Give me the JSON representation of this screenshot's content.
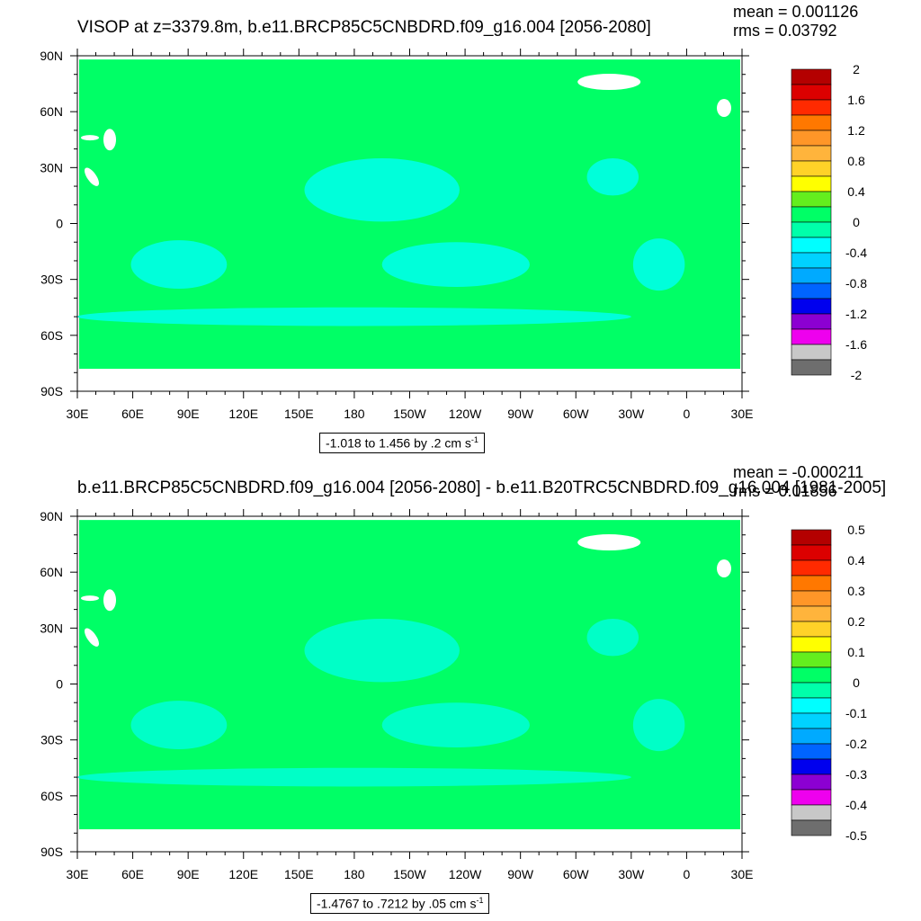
{
  "lat_ticks": [
    "90N",
    "60N",
    "30N",
    "0",
    "30S",
    "60S",
    "90S"
  ],
  "lon_ticks": [
    "30E",
    "60E",
    "90E",
    "120E",
    "150E",
    "180",
    "150W",
    "120W",
    "90W",
    "60W",
    "30W",
    "0",
    "30E"
  ],
  "colors": {
    "ocean_base": "#00ff66",
    "ocean_low": "#00ffe0",
    "land": "#ffffff",
    "missing": "#ffffff"
  },
  "panels": [
    {
      "id": "top",
      "title": "VISOP at z=3379.8m, b.e11.BRCP85C5CNBDRD.f09_g16.004 [2056-2080]",
      "mean": "mean = 0.001126",
      "rms": "rms = 0.03792",
      "range_text": "-1.018 to 1.456 by .2 cm s",
      "range_exp": "-1"
    },
    {
      "id": "bottom",
      "title": "b.e11.BRCP85C5CNBDRD.f09_g16.004 [2056-2080] - b.e11.B20TRC5CNBDRD.f09_g16.004 [1981-2005]",
      "mean": "mean = -0.000211",
      "rms": "rms = 0.01856",
      "range_text": "-1.4767 to .7212 by .05 cm s",
      "range_exp": "-1"
    }
  ],
  "chart_data": [
    {
      "type": "heatmap",
      "title": "VISOP at z=3379.8m, b.e11.BRCP85C5CNBDRD.f09_g16.004 [2056-2080]",
      "xlabel": "",
      "ylabel": "",
      "x_ticks": [
        "30E",
        "60E",
        "90E",
        "120E",
        "150E",
        "180",
        "150W",
        "120W",
        "90W",
        "60W",
        "30W",
        "0",
        "30E"
      ],
      "y_ticks": [
        "90N",
        "60N",
        "30N",
        "0",
        "30S",
        "60S",
        "90S"
      ],
      "xlim_deg_east": [
        30,
        390
      ],
      "ylim_deg_north": [
        -90,
        90
      ],
      "legend_placement": "right",
      "colorbar": {
        "labels": [
          "2",
          "1.6",
          "1.2",
          "0.8",
          "0.4",
          "0",
          "-0.4",
          "-0.8",
          "-1.2",
          "-1.6",
          "-2"
        ],
        "levels": [
          2,
          1.8,
          1.6,
          1.4,
          1.2,
          1.0,
          0.8,
          0.6,
          0.4,
          0.2,
          0,
          -0.2,
          -0.4,
          -0.6,
          -0.8,
          -1.0,
          -1.2,
          -1.4,
          -1.6,
          -1.8,
          -2
        ],
        "colors": [
          "#b40000",
          "#dc0000",
          "#ff2a00",
          "#ff7800",
          "#ff9628",
          "#ffb43c",
          "#ffd228",
          "#ffff00",
          "#64ee1e",
          "#00ff66",
          "#00ffaa",
          "#00ffff",
          "#00d2ff",
          "#00aaff",
          "#0064ff",
          "#0000ee",
          "#8c00d2",
          "#ee00ee",
          "#c8c8c8",
          "#6e6e6e"
        ]
      },
      "stats": {
        "mean": 0.001126,
        "rms": 0.03792
      },
      "data_range": {
        "min": -1.018,
        "max": 1.456,
        "interval": 0.2,
        "units": "cm s-1"
      }
    },
    {
      "type": "heatmap",
      "title": "b.e11.BRCP85C5CNBDRD.f09_g16.004 [2056-2080] - b.e11.B20TRC5CNBDRD.f09_g16.004 [1981-2005]",
      "xlabel": "",
      "ylabel": "",
      "x_ticks": [
        "30E",
        "60E",
        "90E",
        "120E",
        "150E",
        "180",
        "150W",
        "120W",
        "90W",
        "60W",
        "30W",
        "0",
        "30E"
      ],
      "y_ticks": [
        "90N",
        "60N",
        "30N",
        "0",
        "30S",
        "60S",
        "90S"
      ],
      "xlim_deg_east": [
        30,
        390
      ],
      "ylim_deg_north": [
        -90,
        90
      ],
      "legend_placement": "right",
      "colorbar": {
        "labels": [
          "0.5",
          "0.4",
          "0.3",
          "0.2",
          "0.1",
          "0",
          "-0.1",
          "-0.2",
          "-0.3",
          "-0.4",
          "-0.5"
        ],
        "levels": [
          0.5,
          0.45,
          0.4,
          0.35,
          0.3,
          0.25,
          0.2,
          0.15,
          0.1,
          0.05,
          0,
          -0.05,
          -0.1,
          -0.15,
          -0.2,
          -0.25,
          -0.3,
          -0.35,
          -0.4,
          -0.45,
          -0.5
        ],
        "colors": [
          "#b40000",
          "#dc0000",
          "#ff2a00",
          "#ff7800",
          "#ff9628",
          "#ffb43c",
          "#ffd228",
          "#ffff00",
          "#64ee1e",
          "#00ff66",
          "#00ffaa",
          "#00ffff",
          "#00d2ff",
          "#00aaff",
          "#0064ff",
          "#0000ee",
          "#8c00d2",
          "#ee00ee",
          "#c8c8c8",
          "#6e6e6e"
        ]
      },
      "stats": {
        "mean": -0.000211,
        "rms": 0.01856
      },
      "data_range": {
        "min": -1.4767,
        "max": 0.7212,
        "interval": 0.05,
        "units": "cm s-1"
      }
    }
  ]
}
